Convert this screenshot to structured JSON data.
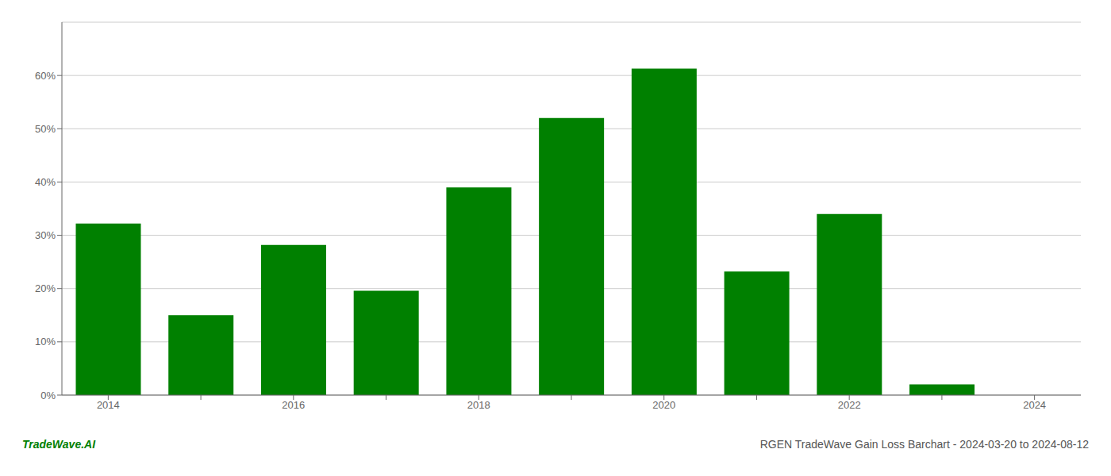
{
  "chart_data": {
    "type": "bar",
    "title": "RGEN TradeWave Gain Loss Barchart - 2024-03-20 to 2024-08-12",
    "annotations": [
      "TradeWave.AI"
    ],
    "categories": [
      "2014",
      null,
      "2016",
      null,
      "2018",
      null,
      "2020",
      null,
      "2022",
      null,
      "2024"
    ],
    "values": [
      0.322,
      0.15,
      0.282,
      0.196,
      0.39,
      0.52,
      0.613,
      0.232,
      0.34,
      0.02,
      null
    ],
    "color": "#008000",
    "ylim": [
      0,
      0.7
    ],
    "yticks": [
      {
        "value": 0.0,
        "label": "0%"
      },
      {
        "value": 0.1,
        "label": "10%"
      },
      {
        "value": 0.2,
        "label": "20%"
      },
      {
        "value": 0.3,
        "label": "30%"
      },
      {
        "value": 0.4,
        "label": "40%"
      },
      {
        "value": 0.5,
        "label": "50%"
      },
      {
        "value": 0.6,
        "label": "60%"
      }
    ],
    "grid": true
  }
}
